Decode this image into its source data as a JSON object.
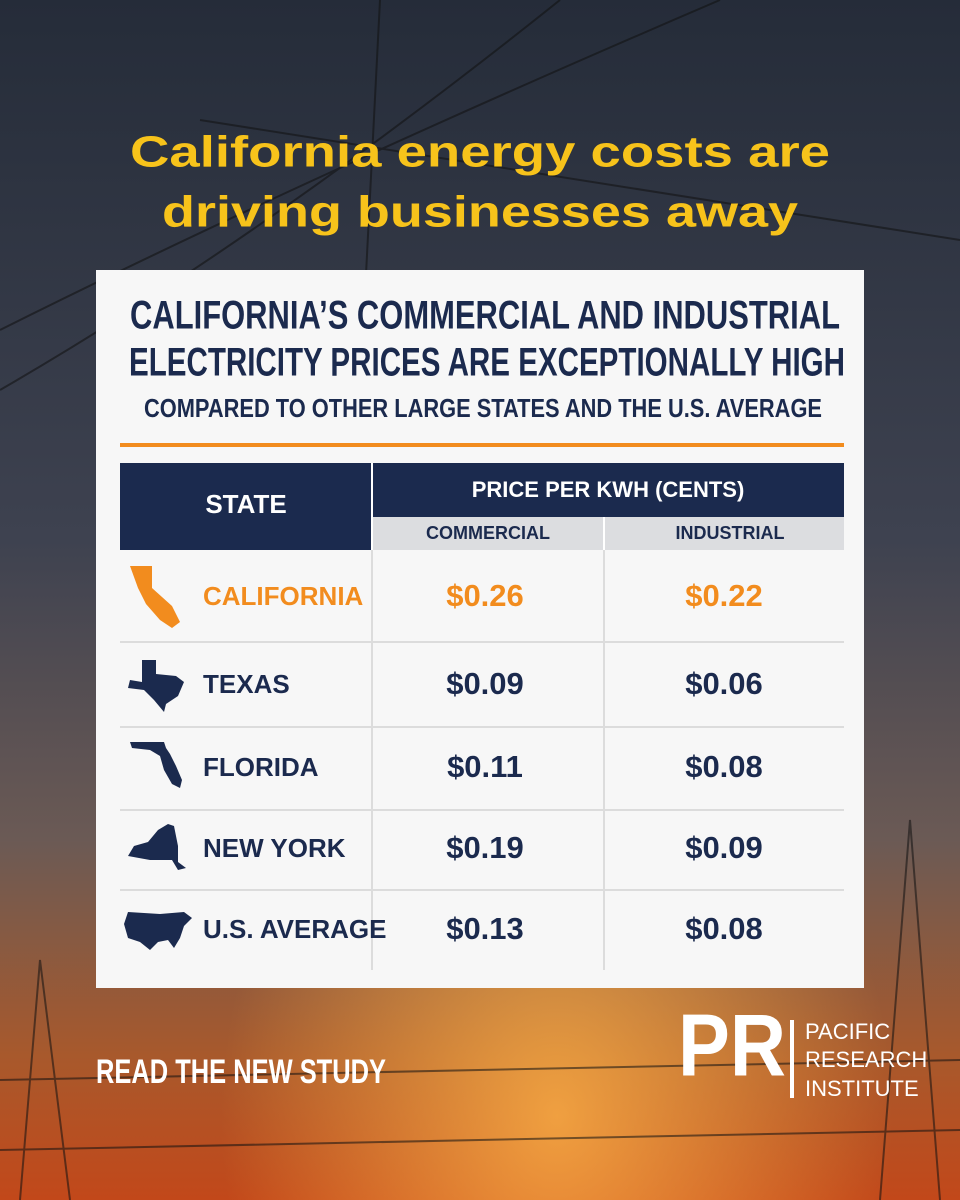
{
  "headline": [
    "California energy costs are",
    "driving businesses away"
  ],
  "card": {
    "title": [
      "CALIFORNIA’S COMMERCIAL AND INDUSTRIAL",
      "ELECTRICITY PRICES ARE EXCEPTIONALLY HIGH"
    ],
    "subtitle": "COMPARED TO OTHER LARGE STATES AND THE U.S. AVERAGE"
  },
  "table": {
    "header": {
      "state": "STATE",
      "price": "PRICE PER KWH (CENTS)",
      "commercial": "COMMERCIAL",
      "industrial": "INDUSTRIAL"
    },
    "rows": [
      [
        "CALIFORNIA",
        "$0.26",
        "$0.22"
      ],
      [
        "TEXAS",
        "$0.09",
        "$0.06"
      ],
      [
        "FLORIDA",
        "$0.11",
        "$0.08"
      ],
      [
        "NEW YORK",
        "$0.19",
        "$0.09"
      ],
      [
        "U.S. AVERAGE",
        "$0.13",
        "$0.08"
      ]
    ]
  },
  "cta": "READ THE NEW STUDY",
  "logo": {
    "mark": "PR",
    "name": [
      "PACIFIC",
      "RESEARCH",
      "INSTITUTE"
    ]
  }
}
